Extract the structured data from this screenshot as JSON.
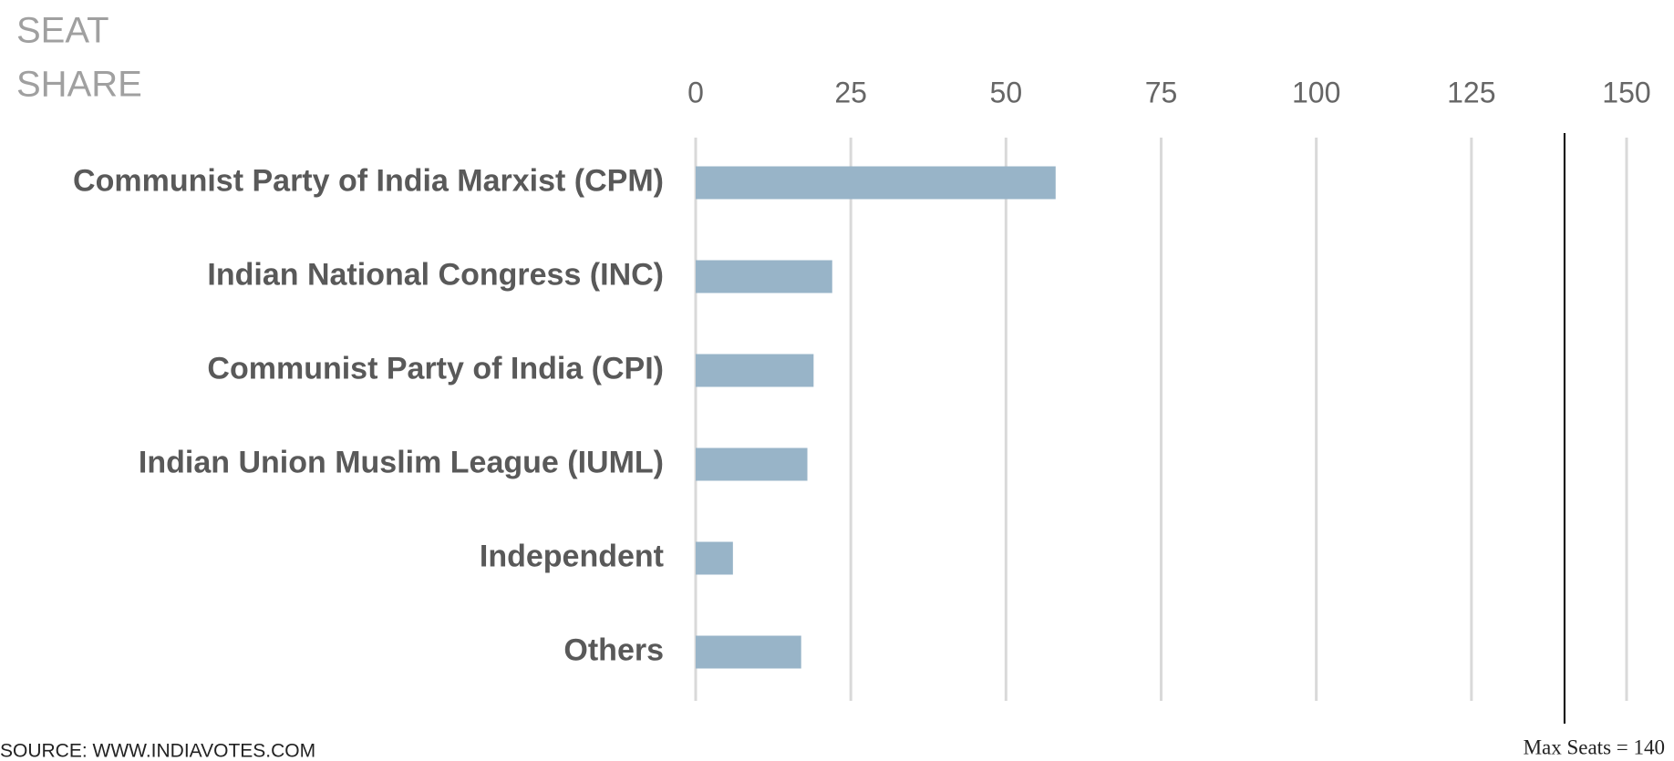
{
  "chart_data": {
    "type": "hbar",
    "title_lines": [
      "SEAT",
      "SHARE"
    ],
    "categories": [
      "Communist Party of India Marxist (CPM)",
      "Indian National Congress (INC)",
      "Communist Party of India (CPI)",
      "Indian Union Muslim League (IUML)",
      "Independent",
      "Others"
    ],
    "values": [
      58,
      22,
      19,
      18,
      6,
      17
    ],
    "color": "#98b4c8",
    "xlim": [
      0,
      150
    ],
    "xticks": [
      0,
      25,
      50,
      75,
      100,
      125,
      150
    ],
    "grid": true,
    "reference": {
      "value": 140,
      "label": "Max Seats = 140"
    },
    "source": "SOURCE: WWW.INDIAVOTES.COM"
  }
}
